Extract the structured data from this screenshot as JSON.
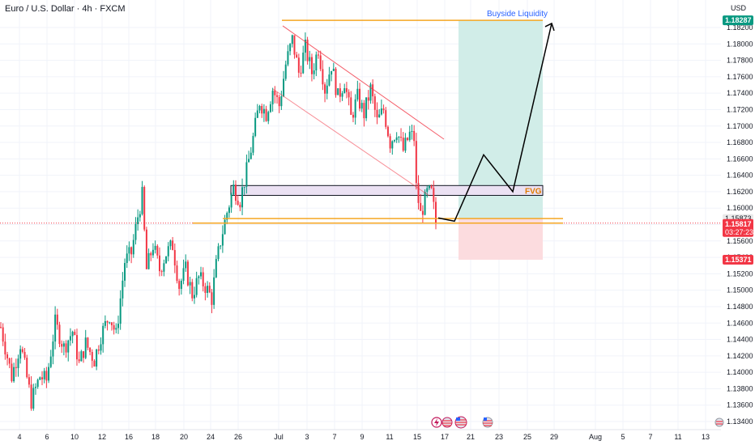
{
  "header": {
    "title": "Euro / U.S. Dollar · 4h · FXCM",
    "currency": "USD"
  },
  "colors": {
    "up": "#089981",
    "down": "#f23645",
    "orange": "#f5a623",
    "current": "#f23645",
    "target": "#089981"
  },
  "badges": {
    "target": "1.18287",
    "line1": "1.15873",
    "current_price": "1.15817",
    "countdown": "03:27:23",
    "stop": "1.15371"
  },
  "annotations": {
    "buyside": "Buyside Liquidity",
    "fvg": "FVG"
  },
  "event_icons": [
    "lightning-icon",
    "us-flag-icon",
    "us-flag-icon",
    "us-flag-icon"
  ],
  "chart_data": {
    "type": "candlestick",
    "title": "Euro / U.S. Dollar · 4h · FXCM",
    "y_range": [
      1.133,
      1.1845
    ],
    "y_ticks": [
      "1.18200",
      "1.18000",
      "1.17800",
      "1.17600",
      "1.17400",
      "1.17200",
      "1.17000",
      "1.16800",
      "1.16600",
      "1.16400",
      "1.16200",
      "1.16000",
      "1.15800",
      "1.15600",
      "1.15400",
      "1.15200",
      "1.15000",
      "1.14800",
      "1.14600",
      "1.14400",
      "1.14200",
      "1.14000",
      "1.13800",
      "1.13600",
      "1.13400"
    ],
    "x_ticks": [
      "4",
      "6",
      "10",
      "12",
      "16",
      "18",
      "20",
      "24",
      "26",
      "Jul",
      "3",
      "7",
      "9",
      "11",
      "15",
      "17",
      "21",
      "23",
      "25",
      "29",
      "Aug",
      "5",
      "7",
      "11",
      "13"
    ],
    "anchors": [
      [
        0,
        1.1455
      ],
      [
        5,
        1.1395
      ],
      [
        9,
        1.1435
      ],
      [
        14,
        1.1365
      ],
      [
        18,
        1.1395
      ],
      [
        21,
        1.139
      ],
      [
        25,
        1.146
      ],
      [
        29,
        1.143
      ],
      [
        33,
        1.145
      ],
      [
        36,
        1.141
      ],
      [
        39,
        1.1435
      ],
      [
        43,
        1.1415
      ],
      [
        46,
        1.1445
      ],
      [
        50,
        1.147
      ],
      [
        53,
        1.1445
      ],
      [
        57,
        1.1535
      ],
      [
        60,
        1.1545
      ],
      [
        63,
        1.159
      ],
      [
        65,
        1.1615
      ],
      [
        67,
        1.1525
      ],
      [
        70,
        1.1555
      ],
      [
        73,
        1.1525
      ],
      [
        76,
        1.1545
      ],
      [
        79,
        1.1555
      ],
      [
        82,
        1.1505
      ],
      [
        85,
        1.1525
      ],
      [
        88,
        1.1495
      ],
      [
        91,
        1.1515
      ],
      [
        94,
        1.1505
      ],
      [
        97,
        1.149
      ],
      [
        99,
        1.153
      ],
      [
        101,
        1.156
      ],
      [
        104,
        1.1595
      ],
      [
        107,
        1.1625
      ],
      [
        110,
        1.161
      ],
      [
        113,
        1.1645
      ],
      [
        116,
        1.1685
      ],
      [
        119,
        1.173
      ],
      [
        122,
        1.1715
      ],
      [
        125,
        1.1745
      ],
      [
        128,
        1.1725
      ],
      [
        131,
        1.1775
      ],
      [
        134,
        1.1805
      ],
      [
        137,
        1.1765
      ],
      [
        140,
        1.1795
      ],
      [
        143,
        1.1765
      ],
      [
        146,
        1.1795
      ],
      [
        149,
        1.1745
      ],
      [
        152,
        1.1775
      ],
      [
        155,
        1.1735
      ],
      [
        158,
        1.1755
      ],
      [
        161,
        1.171
      ],
      [
        164,
        1.1735
      ],
      [
        167,
        1.1715
      ],
      [
        170,
        1.1745
      ],
      [
        173,
        1.1705
      ],
      [
        176,
        1.172
      ],
      [
        179,
        1.168
      ],
      [
        182,
        1.1695
      ],
      [
        185,
        1.167
      ],
      [
        188,
        1.169
      ],
      [
        190,
        1.1685
      ],
      [
        191,
        1.1625
      ],
      [
        193,
        1.1592
      ],
      [
        196,
        1.1618
      ],
      [
        198,
        1.1618
      ],
      [
        200,
        1.1582
      ]
    ],
    "n_candles": 201,
    "current_price": 1.15817,
    "levels": [
      1.15873,
      1.15817
    ],
    "zones": [
      {
        "name": "FVG",
        "from": 1.16155,
        "to": 1.16275
      },
      {
        "name": "target",
        "from": 1.15873,
        "to": 1.18287
      },
      {
        "name": "stop",
        "from": 1.15371,
        "to": 1.15873
      }
    ],
    "projection": [
      {
        "date": "Jul 16",
        "price": 1.1588
      },
      {
        "date": "Jul 17",
        "price": 1.1584
      },
      {
        "date": "Jul 21",
        "price": 1.1665
      },
      {
        "date": "Jul 23",
        "price": 1.162
      },
      {
        "date": "Jul 29",
        "price": 1.1825
      }
    ]
  }
}
